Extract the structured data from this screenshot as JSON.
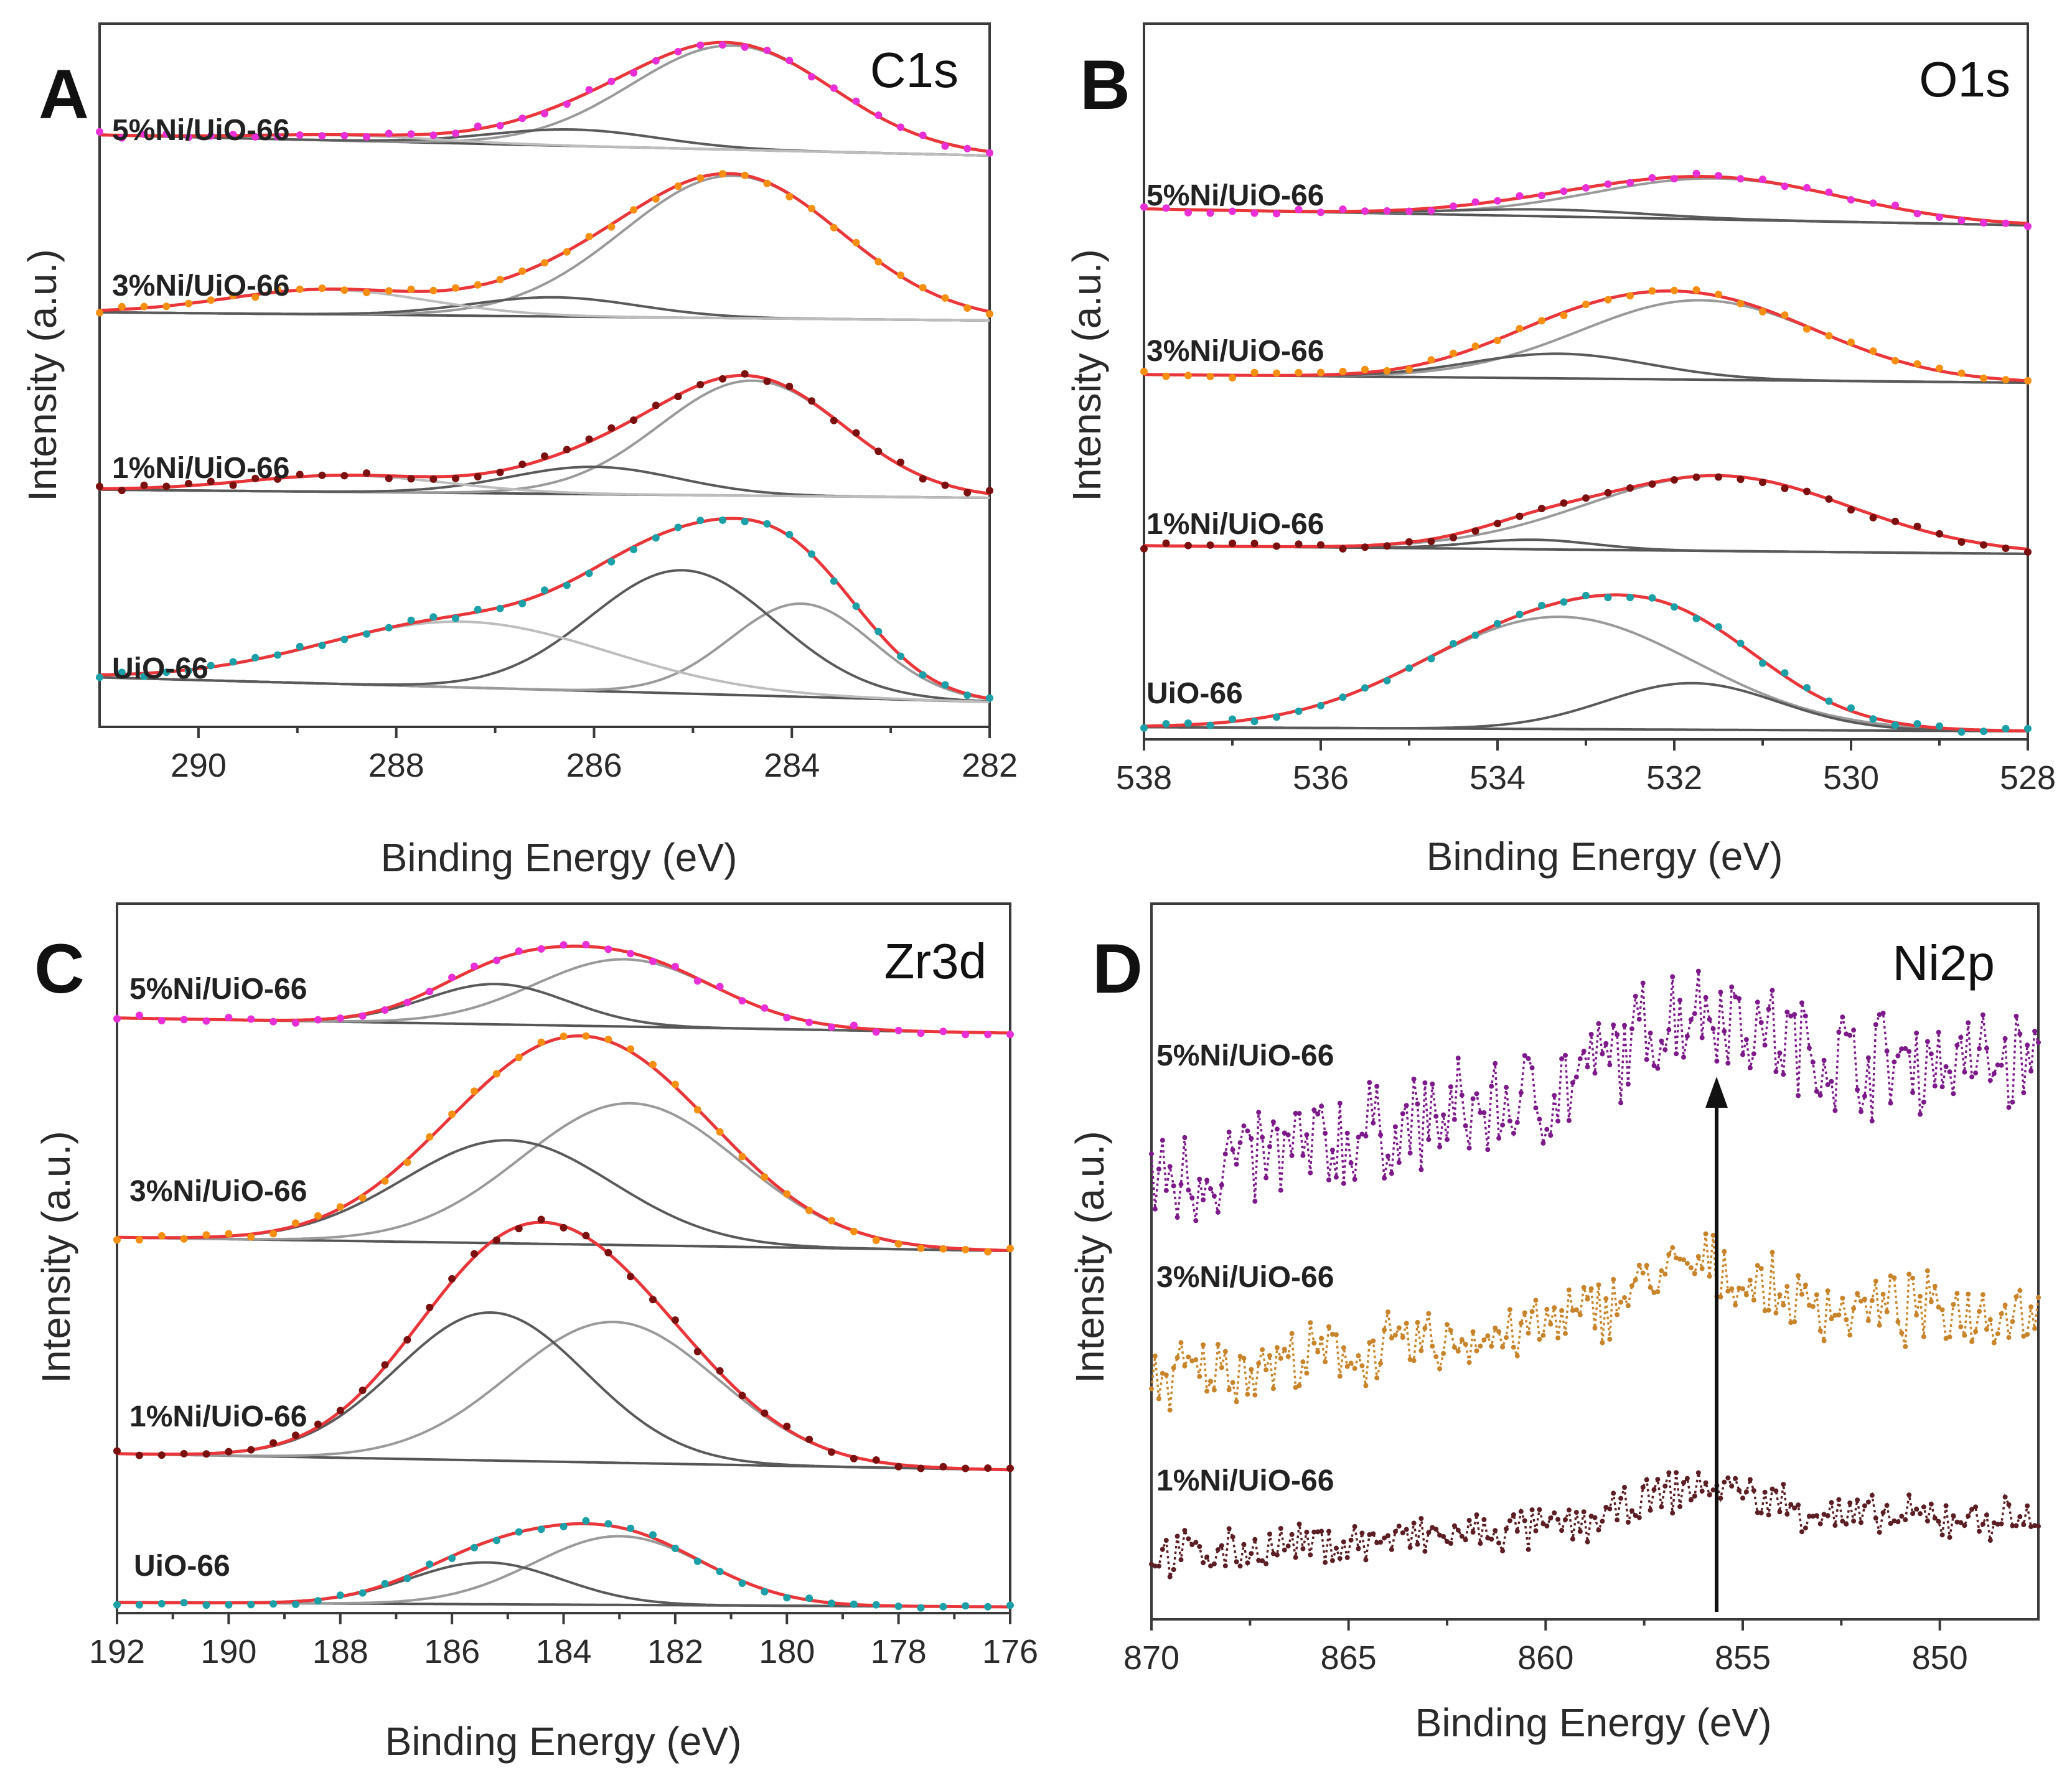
{
  "chart_data": [
    {
      "id": "A",
      "type": "line",
      "panel_label": "A",
      "title": "C1s",
      "xlabel": "Binding Energy (eV)",
      "ylabel": "Intensity (a.u.)",
      "xlim": [
        291,
        282
      ],
      "xticks": [
        290,
        288,
        286,
        284,
        282
      ],
      "xtick_labels": [
        "290",
        "288",
        "286",
        "284",
        "282"
      ],
      "series": [
        {
          "name": "5%Ni/UiO-66",
          "marker_color": "#e82fd5",
          "components": [
            {
              "center": 284.6,
              "fwhm": 2.4,
              "height": 0.38
            },
            {
              "center": 286.2,
              "fwhm": 2.0,
              "height": 0.06
            },
            {
              "center": 288.5,
              "fwhm": 2.2,
              "height": 0.02
            }
          ]
        },
        {
          "name": "3%Ni/UiO-66",
          "marker_color": "#f58f12",
          "components": [
            {
              "center": 284.6,
              "fwhm": 2.6,
              "height": 0.52
            },
            {
              "center": 286.4,
              "fwhm": 2.0,
              "height": 0.07
            },
            {
              "center": 288.7,
              "fwhm": 2.4,
              "height": 0.09
            }
          ]
        },
        {
          "name": "1%Ni/UiO-66",
          "marker_color": "#7a1010",
          "components": [
            {
              "center": 284.4,
              "fwhm": 2.2,
              "height": 0.42
            },
            {
              "center": 286.0,
              "fwhm": 2.0,
              "height": 0.1
            },
            {
              "center": 288.5,
              "fwhm": 2.4,
              "height": 0.06
            }
          ]
        },
        {
          "name": "UiO-66",
          "marker_color": "#1aa0a6",
          "components": [
            {
              "center": 283.9,
              "fwhm": 1.7,
              "height": 0.34
            },
            {
              "center": 285.1,
              "fwhm": 2.2,
              "height": 0.45
            },
            {
              "center": 287.3,
              "fwhm": 3.4,
              "height": 0.24
            }
          ]
        }
      ]
    },
    {
      "id": "B",
      "type": "line",
      "panel_label": "B",
      "title": "O1s",
      "xlabel": "Binding Energy (eV)",
      "ylabel": "Intensity (a.u.)",
      "xlim": [
        538,
        528
      ],
      "xticks": [
        538,
        536,
        534,
        532,
        530,
        528
      ],
      "xtick_labels": [
        "538",
        "536",
        "534",
        "532",
        "530",
        "528"
      ],
      "series": [
        {
          "name": "5%Ni/UiO-66",
          "marker_color": "#e82fd5",
          "components": [
            {
              "center": 531.5,
              "fwhm": 3.3,
              "height": 0.3
            },
            {
              "center": 533.4,
              "fwhm": 2.6,
              "height": 0.05
            }
          ]
        },
        {
          "name": "3%Ni/UiO-66",
          "marker_color": "#f58f12",
          "components": [
            {
              "center": 531.7,
              "fwhm": 3.2,
              "height": 0.58
            },
            {
              "center": 533.3,
              "fwhm": 2.4,
              "height": 0.18
            }
          ]
        },
        {
          "name": "1%Ni/UiO-66",
          "marker_color": "#7a1010",
          "components": [
            {
              "center": 531.5,
              "fwhm": 3.5,
              "height": 0.55
            },
            {
              "center": 533.6,
              "fwhm": 1.6,
              "height": 0.07
            }
          ]
        },
        {
          "name": "UiO-66",
          "marker_color": "#1aa0a6",
          "components": [
            {
              "center": 533.3,
              "fwhm": 3.6,
              "height": 0.82
            },
            {
              "center": 531.8,
              "fwhm": 2.3,
              "height": 0.34
            }
          ]
        }
      ]
    },
    {
      "id": "C",
      "type": "line",
      "panel_label": "C",
      "title": "Zr3d",
      "xlabel": "Binding Energy (eV)",
      "ylabel": "Intensity (a.u.)",
      "xlim": [
        192,
        176
      ],
      "xticks": [
        192,
        190,
        188,
        186,
        184,
        182,
        180,
        178,
        176
      ],
      "xtick_labels": [
        "192",
        "190",
        "188",
        "186",
        "184",
        "182",
        "180",
        "178",
        "176"
      ],
      "series": [
        {
          "name": "5%Ni/UiO-66",
          "marker_color": "#e82fd5",
          "components": [
            {
              "center": 182.9,
              "fwhm": 3.8,
              "height": 0.4
            },
            {
              "center": 185.2,
              "fwhm": 3.0,
              "height": 0.24
            }
          ]
        },
        {
          "name": "3%Ni/UiO-66",
          "marker_color": "#f58f12",
          "components": [
            {
              "center": 182.8,
              "fwhm": 4.6,
              "height": 0.95
            },
            {
              "center": 185.0,
              "fwhm": 4.4,
              "height": 0.69
            }
          ]
        },
        {
          "name": "1%Ni/UiO-66",
          "marker_color": "#7a1010",
          "components": [
            {
              "center": 183.1,
              "fwhm": 4.4,
              "height": 0.78
            },
            {
              "center": 185.3,
              "fwhm": 4.0,
              "height": 0.82
            }
          ]
        },
        {
          "name": "UiO-66",
          "marker_color": "#1aa0a6",
          "components": [
            {
              "center": 183.0,
              "fwhm": 3.6,
              "height": 0.46
            },
            {
              "center": 185.4,
              "fwhm": 3.2,
              "height": 0.28
            }
          ]
        }
      ]
    },
    {
      "id": "D",
      "type": "line",
      "panel_label": "D",
      "title": "Ni2p",
      "xlabel": "Binding Energy (eV)",
      "ylabel": "Intensity (a.u.)",
      "xlim": [
        870,
        847.5
      ],
      "xticks": [
        870,
        865,
        860,
        855,
        850
      ],
      "xtick_labels": [
        "870",
        "865",
        "860",
        "855",
        "850"
      ],
      "arrow_at": 856,
      "series": [
        {
          "name": "5%Ni/UiO-66",
          "marker_color": "#7c1a8a",
          "peak": 856.2,
          "noise": 0.26,
          "rise": 0.75
        },
        {
          "name": "3%Ni/UiO-66",
          "marker_color": "#c8842a",
          "peak": 856.4,
          "noise": 0.22,
          "rise": 0.55
        },
        {
          "name": "1%Ni/UiO-66",
          "marker_color": "#5a1e24",
          "peak": 856.0,
          "noise": 0.18,
          "rise": 0.4
        }
      ]
    }
  ]
}
